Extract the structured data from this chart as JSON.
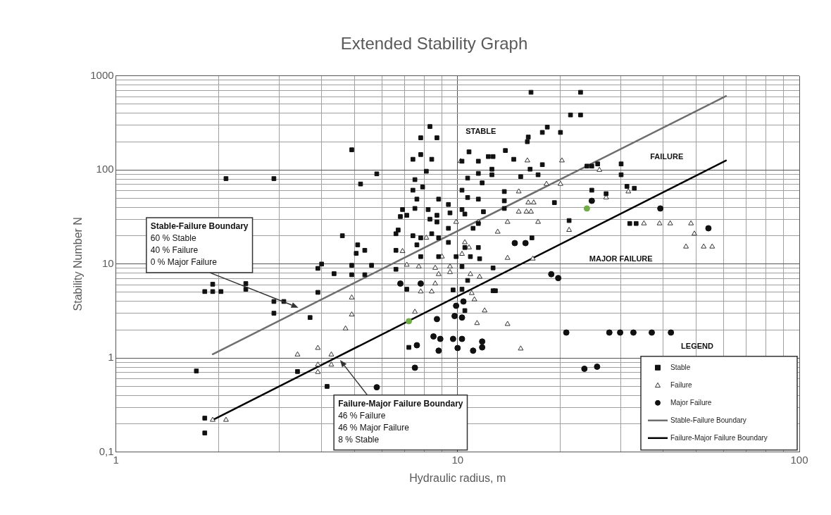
{
  "chart_data": {
    "type": "scatter",
    "title": "Extended Stability Graph",
    "xlabel": "Hydraulic radius, m",
    "ylabel": "Stability Number N",
    "legend_title": "LEGEND",
    "log": "xy",
    "grid": true,
    "legend": "bottom right",
    "xlim": [
      1,
      100
    ],
    "ylim": [
      0.1,
      1000
    ],
    "xticks": [
      1,
      {
        "value": 2,
        "label": null
      },
      {
        "value": 3,
        "label": null
      },
      {
        "value": 4,
        "label": null
      },
      {
        "value": 5,
        "label": null
      },
      {
        "value": 6,
        "label": null
      },
      {
        "value": 7,
        "label": null
      },
      {
        "value": 8,
        "label": null
      },
      {
        "value": 9,
        "label": null
      },
      10,
      {
        "value": 20,
        "label": null
      },
      {
        "value": 30,
        "label": null
      },
      {
        "value": 40,
        "label": null
      },
      {
        "value": 50,
        "label": null
      },
      {
        "value": 60,
        "label": null
      },
      {
        "value": 70,
        "label": null
      },
      {
        "value": 80,
        "label": null
      },
      {
        "value": 90,
        "label": null
      },
      100
    ],
    "yticks": [
      {
        "value": 0.1,
        "label": "0,1"
      },
      {
        "value": 0.2,
        "label": null
      },
      {
        "value": 0.3,
        "label": null
      },
      {
        "value": 0.4,
        "label": null
      },
      {
        "value": 0.5,
        "label": null
      },
      {
        "value": 0.6,
        "label": null
      },
      {
        "value": 0.7,
        "label": null
      },
      {
        "value": 0.8,
        "label": null
      },
      {
        "value": 0.9,
        "label": null
      },
      1,
      {
        "value": 2,
        "label": null
      },
      {
        "value": 3,
        "label": null
      },
      {
        "value": 4,
        "label": null
      },
      {
        "value": 5,
        "label": null
      },
      {
        "value": 6,
        "label": null
      },
      {
        "value": 7,
        "label": null
      },
      {
        "value": 8,
        "label": null
      },
      {
        "value": 9,
        "label": null
      },
      10,
      {
        "value": 20,
        "label": null
      },
      {
        "value": 30,
        "label": null
      },
      {
        "value": 40,
        "label": null
      },
      {
        "value": 50,
        "label": null
      },
      {
        "value": 60,
        "label": null
      },
      {
        "value": 70,
        "label": null
      },
      {
        "value": 80,
        "label": null
      },
      {
        "value": 90,
        "label": null
      },
      100,
      {
        "value": 200,
        "label": null
      },
      {
        "value": 300,
        "label": null
      },
      {
        "value": 400,
        "label": null
      },
      {
        "value": 500,
        "label": null
      },
      {
        "value": 600,
        "label": null
      },
      {
        "value": 700,
        "label": null
      },
      {
        "value": 800,
        "label": null
      },
      {
        "value": 900,
        "label": null
      },
      1000
    ],
    "series": [
      {
        "name": "Stable",
        "marker": "square",
        "color": "#111111",
        "x": [
          4.9,
          2.1,
          2.9,
          5.8,
          5.2,
          4.6,
          5.1,
          5.05,
          5.35,
          4,
          3.9,
          4.9,
          5.6,
          4.35,
          4.9,
          5.35,
          1.92,
          1.82,
          1.92,
          2.03,
          2.4,
          2.4,
          2.9,
          3.1,
          2.9,
          3.9,
          3.7,
          1.72,
          3.4,
          4.15,
          1.82,
          1.82,
          8.3,
          7.8,
          8.7,
          7.8,
          7.4,
          8.4,
          8.1,
          7.5,
          7.9,
          7.4,
          7.6,
          8.8,
          9.4,
          7.5,
          8.2,
          6.9,
          7.1,
          6.8,
          8.3,
          8.7,
          9.5,
          8.7,
          9.4,
          6.7,
          6.6,
          7.4,
          7.8,
          8.4,
          8.8,
          7.6,
          9.4,
          6.6,
          7.8,
          8.8,
          9.9,
          6.6,
          7.1,
          9.7,
          7.2,
          10.8,
          10.3,
          11.5,
          12.3,
          10.7,
          11.5,
          10.3,
          10.7,
          11.8,
          11.5,
          10.3,
          10.5,
          11.9,
          11.1,
          11.5,
          10.5,
          11.5,
          10.9,
          11.6,
          10.3,
          10.7,
          10.3,
          10.5,
          12.7,
          16.4,
          22.9,
          21.4,
          22.9,
          18.3,
          17.7,
          20,
          16.1,
          16,
          13.8,
          12.7,
          14.6,
          12.6,
          12.6,
          16.3,
          17.2,
          17.7,
          15.3,
          13.7,
          13.7,
          13.7,
          19.2,
          23.9,
          24.7,
          24.7,
          21.2,
          16.5,
          12.7,
          12.9,
          25.7,
          30.1,
          30.1,
          31.3,
          32.9,
          27.2,
          31.9,
          33.3
        ],
        "values": [
          164,
          81,
          81,
          91,
          71,
          20,
          16,
          13,
          14,
          10,
          9,
          9.7,
          9.7,
          7.9,
          7.7,
          7.7,
          6.1,
          5.1,
          5.1,
          5.1,
          6.2,
          5.4,
          4,
          4,
          3,
          5,
          2.7,
          0.73,
          0.72,
          0.5,
          0.23,
          0.16,
          290,
          220,
          220,
          146,
          130,
          130,
          97,
          79,
          66,
          61,
          49,
          49,
          43,
          39,
          38,
          38,
          33,
          32,
          30,
          33,
          35,
          28,
          24,
          23,
          21,
          20,
          19,
          21,
          19,
          16,
          17,
          14,
          12,
          12,
          12,
          8.8,
          5.4,
          5.3,
          1.3,
          156,
          124,
          124,
          139,
          82,
          92,
          61,
          51,
          73,
          49,
          38,
          34,
          36,
          24,
          27,
          15,
          15,
          12,
          11.4,
          9.4,
          6.7,
          5.4,
          3.2,
          5.2,
          670,
          670,
          385,
          385,
          286,
          251,
          251,
          224,
          200,
          161,
          139,
          130,
          102,
          89,
          102,
          89,
          114,
          85,
          59,
          47,
          39,
          45,
          110,
          110,
          61,
          29,
          19,
          9.1,
          5.2,
          116,
          116,
          89,
          67,
          64,
          56,
          27,
          27
        ]
      },
      {
        "name": "Failure",
        "marker": "triangle",
        "color": "#333333",
        "x": [
          4.9,
          4.9,
          4.7,
          3.9,
          3.4,
          4.27,
          3.9,
          4.27,
          3.9,
          1.92,
          2.1,
          10.2,
          9.9,
          11.5,
          10.5,
          10.8,
          10.3,
          6.9,
          7.1,
          7.7,
          8.1,
          9,
          8.6,
          8.8,
          9.5,
          9.5,
          10.9,
          11.6,
          8.6,
          7.8,
          8.4,
          11,
          11.2,
          12,
          11.4,
          7.5,
          16,
          20.2,
          15.1,
          18.2,
          20,
          16.1,
          16.7,
          15.1,
          15.9,
          16.4,
          14,
          17.2,
          13.1,
          21.2,
          14,
          16.6,
          14,
          15.3,
          26,
          31.6,
          27.2,
          35.1,
          39,
          41.9,
          48.2,
          49.3,
          46.6,
          52.5,
          55.6
        ],
        "values": [
          4.4,
          2.9,
          2.06,
          1.28,
          1.09,
          1.09,
          0.85,
          0.85,
          0.71,
          0.22,
          0.22,
          124,
          28,
          28,
          17,
          15,
          12.8,
          13.7,
          9.8,
          9.4,
          19,
          12,
          9.1,
          7.8,
          9.4,
          8.2,
          7.8,
          7.3,
          6.2,
          5.1,
          5.1,
          4.9,
          4.2,
          3.2,
          2.35,
          3.1,
          126,
          126,
          59,
          71,
          71,
          45,
          45,
          36,
          36,
          36,
          28,
          28,
          22,
          23,
          11.6,
          11.4,
          2.3,
          1.26,
          100,
          59,
          51,
          27,
          27,
          27,
          27,
          21,
          15.3,
          15.3,
          15.3
        ]
      },
      {
        "name": "Major Failure",
        "marker": "circle",
        "color": "#111111",
        "x": [
          5.8,
          6.8,
          7.8,
          9.9,
          10.4,
          8.7,
          9.8,
          10.3,
          8.5,
          8.9,
          9.7,
          10.3,
          7.6,
          8.8,
          10,
          11.1,
          11.8,
          11.8,
          7.5,
          14.7,
          15.8,
          18.8,
          19.7,
          24.7,
          20.8,
          23.5,
          25.6,
          39.2,
          54.2,
          27.8,
          29.9,
          32.7,
          37,
          42.1
        ],
        "values": [
          0.49,
          6.2,
          6.2,
          3.6,
          4,
          2.6,
          2.8,
          2.7,
          1.7,
          1.6,
          1.6,
          1.6,
          1.37,
          1.2,
          1.28,
          1.2,
          1.3,
          1.5,
          0.79,
          16.7,
          16.7,
          7.8,
          7.1,
          47,
          1.87,
          0.77,
          0.81,
          39,
          24,
          1.87,
          1.87,
          1.87,
          1.87,
          1.87
        ]
      },
      {
        "name": "Stable-Failure Boundary",
        "type": "line",
        "marker": "none",
        "color": "#6e6e6e",
        "x": [
          1.92,
          61
        ],
        "values": [
          1.1,
          611
        ]
      },
      {
        "name": "Failure-Major Failure Boundary",
        "type": "line",
        "marker": "none",
        "color": "#000000",
        "x": [
          1.92,
          61
        ],
        "values": [
          0.22,
          126
        ]
      },
      {
        "marker": "circle",
        "color": "#70ad47",
        "x": [
          7.2,
          23.9
        ],
        "values": [
          2.47,
          39
        ]
      }
    ],
    "annotations": [
      "STABLE",
      "FAILURE",
      "MAJOR FAILURE",
      "Stable-Failure Boundary\n60 % Stable\n40 % Failure\n0 % Major Failure",
      "Failure-Major Failure Boundary\n46 % Failure\n46 % Major Failure\n8 % Stable"
    ]
  }
}
